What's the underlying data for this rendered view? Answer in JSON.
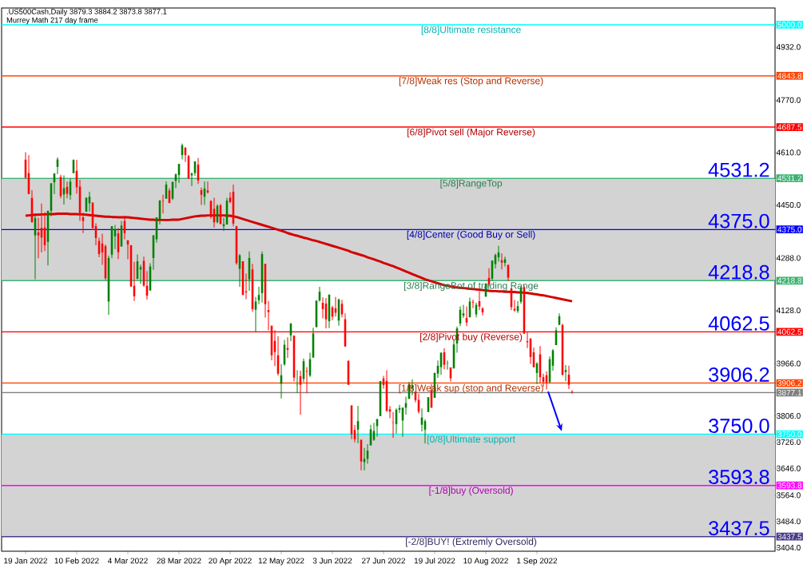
{
  "chart_data": {
    "type": "candlestick",
    "title": ".US500Cash,Daily  3879.3 3884.2 3873.8 3877.1",
    "subtitle": "Murrey Math 217 day frame",
    "categories": [
      "19 Jan 2022",
      null,
      null,
      null,
      null,
      null,
      null,
      null,
      null,
      null,
      null,
      null,
      null,
      null,
      null,
      null,
      "10 Feb 2022",
      null,
      null,
      null,
      null,
      null,
      null,
      null,
      null,
      null,
      null,
      null,
      null,
      null,
      null,
      null,
      "4 Mar 2022",
      null,
      null,
      null,
      null,
      null,
      null,
      null,
      null,
      null,
      null,
      null,
      null,
      null,
      null,
      null,
      "28 Mar 2022",
      null,
      null,
      null,
      null,
      null,
      null,
      null,
      null,
      null,
      null,
      null,
      null,
      null,
      null,
      null,
      "20 Apr 2022",
      null,
      null,
      null,
      null,
      null,
      null,
      null,
      null,
      null,
      null,
      null,
      null,
      null,
      null,
      null,
      "12 May 2022",
      null,
      null,
      null,
      null,
      null,
      null,
      null,
      null,
      null,
      null,
      null,
      null,
      null,
      null,
      null,
      "3 Jun 2022",
      null,
      null,
      null,
      null,
      null,
      null,
      null,
      null,
      null,
      null,
      null,
      null,
      null,
      null,
      null,
      "27 Jun 2022",
      null,
      null,
      null,
      null,
      null,
      null,
      null,
      null,
      null,
      null,
      null,
      null,
      null,
      null,
      null,
      "19 Jul 2022",
      null,
      null,
      null,
      null,
      null,
      null,
      null,
      null,
      null,
      null,
      null,
      null,
      null,
      null,
      null,
      "10 Aug 2022",
      null,
      null,
      null,
      null,
      null,
      null,
      null,
      null,
      null,
      null,
      null,
      null,
      null,
      null,
      null,
      "1 Sep 2022",
      null,
      null,
      null,
      null,
      null,
      null,
      null,
      null,
      null,
      null,
      null
    ],
    "ohlc": [
      [
        4588,
        4611,
        4530,
        4533
      ],
      [
        4547,
        4602,
        4483,
        4483
      ],
      [
        4471,
        4495,
        4395,
        4398
      ],
      [
        4357,
        4417,
        4223,
        4410
      ],
      [
        4366,
        4411,
        4287,
        4357
      ],
      [
        4380,
        4454,
        4305,
        4350
      ],
      [
        4381,
        4428,
        4309,
        4327
      ],
      [
        4337,
        4432,
        4265,
        4432
      ],
      [
        4432,
        4516,
        4415,
        4516
      ],
      [
        4519,
        4546,
        4483,
        4546
      ],
      [
        4566,
        4595,
        4544,
        4589
      ],
      [
        4535,
        4542,
        4470,
        4477
      ],
      [
        4482,
        4540,
        4451,
        4501
      ],
      [
        4505,
        4521,
        4470,
        4484
      ],
      [
        4480,
        4531,
        4466,
        4521
      ],
      [
        4547,
        4589,
        4547,
        4587
      ],
      [
        4554,
        4588,
        4484,
        4504
      ],
      [
        4506,
        4527,
        4401,
        4419
      ],
      [
        4412,
        4426,
        4364,
        4401
      ],
      [
        4429,
        4472,
        4429,
        4472
      ],
      [
        4455,
        4490,
        4430,
        4475
      ],
      [
        4457,
        4457,
        4373,
        4380
      ],
      [
        4385,
        4394,
        4327,
        4349
      ],
      [
        4340,
        4350,
        4290,
        4300
      ],
      [
        4332,
        4362,
        4267,
        4305
      ],
      [
        4324,
        4329,
        4221,
        4226
      ],
      [
        4155,
        4295,
        4114,
        4288
      ],
      [
        4298,
        4385,
        4287,
        4385
      ],
      [
        4354,
        4389,
        4315,
        4374
      ],
      [
        4363,
        4379,
        4285,
        4306
      ],
      [
        4323,
        4401,
        4323,
        4387
      ],
      [
        4401,
        4417,
        4345,
        4364
      ],
      [
        4342,
        4342,
        4284,
        4329
      ],
      [
        4327,
        4327,
        4200,
        4201
      ],
      [
        4203,
        4276,
        4157,
        4171
      ],
      [
        4224,
        4299,
        4224,
        4278
      ],
      [
        4253,
        4268,
        4209,
        4260
      ],
      [
        4279,
        4292,
        4200,
        4204
      ],
      [
        4203,
        4248,
        4161,
        4173
      ],
      [
        4189,
        4272,
        4188,
        4262
      ],
      [
        4288,
        4358,
        4252,
        4357
      ],
      [
        4345,
        4412,
        4335,
        4412
      ],
      [
        4407,
        4465,
        4390,
        4463
      ],
      [
        4462,
        4481,
        4424,
        4461
      ],
      [
        4469,
        4522,
        4469,
        4512
      ],
      [
        4494,
        4501,
        4455,
        4456
      ],
      [
        4469,
        4521,
        4465,
        4520
      ],
      [
        4523,
        4546,
        4501,
        4543
      ],
      [
        4541,
        4575,
        4517,
        4575
      ],
      [
        4602,
        4637,
        4589,
        4632
      ],
      [
        4624,
        4627,
        4581,
        4602
      ],
      [
        4599,
        4603,
        4530,
        4530
      ],
      [
        4540,
        4549,
        4507,
        4546
      ],
      [
        4547,
        4583,
        4539,
        4583
      ],
      [
        4573,
        4593,
        4514,
        4525
      ],
      [
        4495,
        4503,
        4450,
        4481
      ],
      [
        4475,
        4521,
        4450,
        4500
      ],
      [
        4494,
        4521,
        4485,
        4488
      ],
      [
        4462,
        4464,
        4408,
        4413
      ],
      [
        4438,
        4472,
        4381,
        4397
      ],
      [
        4397,
        4452,
        4394,
        4447
      ],
      [
        4449,
        4453,
        4390,
        4392
      ],
      [
        4385,
        4411,
        4371,
        4391
      ],
      [
        4390,
        4471,
        4390,
        4463
      ],
      [
        4472,
        4489,
        4455,
        4459
      ],
      [
        4490,
        4512,
        4385,
        4393
      ],
      [
        4385,
        4386,
        4267,
        4272
      ],
      [
        4255,
        4300,
        4200,
        4296
      ],
      [
        4278,
        4278,
        4175,
        4175
      ],
      [
        4186,
        4240,
        4162,
        4183
      ],
      [
        4223,
        4308,
        4188,
        4288
      ],
      [
        4253,
        4270,
        4124,
        4132
      ],
      [
        4130,
        4169,
        4062,
        4155
      ],
      [
        4159,
        4200,
        4147,
        4175
      ],
      [
        4181,
        4308,
        4152,
        4300
      ],
      [
        4270,
        4270,
        4106,
        4147
      ],
      [
        4129,
        4157,
        4067,
        4123
      ],
      [
        4081,
        4082,
        3976,
        3991
      ],
      [
        4035,
        4068,
        3958,
        4001
      ],
      [
        3991,
        4049,
        3929,
        3935
      ],
      [
        3904,
        3964,
        3859,
        3930
      ],
      [
        3963,
        4038,
        3959,
        4023
      ],
      [
        4013,
        4046,
        3983,
        4008
      ],
      [
        4052,
        4089,
        4034,
        4088
      ],
      [
        4051,
        4051,
        3911,
        3923
      ],
      [
        3900,
        3946,
        3876,
        3901
      ],
      [
        3927,
        3944,
        3810,
        3901
      ],
      [
        3919,
        3981,
        3909,
        3973
      ],
      [
        3943,
        3955,
        3875,
        3941
      ],
      [
        3929,
        3999,
        3925,
        3979
      ],
      [
        3984,
        4075,
        3984,
        4058
      ],
      [
        4077,
        4158,
        4077,
        4158
      ],
      [
        4158,
        4200,
        4155,
        4185
      ],
      [
        4151,
        4168,
        4104,
        4132
      ],
      [
        4149,
        4166,
        4073,
        4101
      ],
      [
        4095,
        4177,
        4074,
        4176
      ],
      [
        4137,
        4142,
        4098,
        4109
      ],
      [
        4134,
        4169,
        4109,
        4121
      ],
      [
        4097,
        4164,
        4081,
        4161
      ],
      [
        4148,
        4160,
        4107,
        4116
      ],
      [
        4101,
        4119,
        4017,
        4018
      ],
      [
        3974,
        3975,
        3901,
        3901
      ],
      [
        3838,
        3838,
        3735,
        3750
      ],
      [
        3763,
        3778,
        3725,
        3735
      ],
      [
        3764,
        3837,
        3723,
        3790
      ],
      [
        3733,
        3733,
        3640,
        3667
      ],
      [
        3665,
        3708,
        3640,
        3675
      ],
      [
        3675,
        3720,
        3660,
        3700
      ],
      [
        3716,
        3779,
        3716,
        3765
      ],
      [
        3733,
        3785,
        3730,
        3760
      ],
      [
        3775,
        3797,
        3743,
        3796
      ],
      [
        3805,
        3913,
        3805,
        3912
      ],
      [
        3920,
        3928,
        3889,
        3900
      ],
      [
        3913,
        3945,
        3820,
        3821
      ],
      [
        3826,
        3836,
        3799,
        3819
      ],
      [
        3786,
        3818,
        3739,
        3785
      ],
      [
        3781,
        3829,
        3752,
        3825
      ],
      [
        3825,
        3840,
        3815,
        3830
      ],
      [
        3792,
        3832,
        3742,
        3831
      ],
      [
        3831,
        3865,
        3810,
        3845
      ],
      [
        3858,
        3910,
        3858,
        3903
      ],
      [
        3889,
        3918,
        3869,
        3899
      ],
      [
        3880,
        3880,
        3847,
        3854
      ],
      [
        3855,
        3874,
        3813,
        3819
      ],
      [
        3779,
        3829,
        3759,
        3801
      ],
      [
        3764,
        3796,
        3722,
        3790
      ],
      [
        3818,
        3863,
        3817,
        3863
      ],
      [
        3884,
        3903,
        3831,
        3831
      ],
      [
        3861,
        3938,
        3861,
        3937
      ],
      [
        3935,
        3975,
        3922,
        3959
      ],
      [
        3955,
        3999,
        3932,
        3999
      ],
      [
        4000,
        4012,
        3948,
        3962
      ],
      [
        3966,
        3975,
        3947,
        3967
      ],
      [
        3954,
        3954,
        3911,
        3921
      ],
      [
        3951,
        4039,
        3951,
        4024
      ],
      [
        4027,
        4079,
        3999,
        4073
      ],
      [
        4088,
        4140,
        4080,
        4130
      ],
      [
        4112,
        4145,
        4105,
        4119
      ],
      [
        4105,
        4140,
        4080,
        4091
      ],
      [
        4107,
        4167,
        4107,
        4155
      ],
      [
        4154,
        4161,
        4135,
        4152
      ],
      [
        4116,
        4151,
        4107,
        4145
      ],
      [
        4156,
        4186,
        4129,
        4140
      ],
      [
        4134,
        4138,
        4113,
        4122
      ],
      [
        4170,
        4211,
        4170,
        4210
      ],
      [
        4227,
        4257,
        4201,
        4207
      ],
      [
        4225,
        4280,
        4219,
        4280
      ],
      [
        4269,
        4301,
        4256,
        4297
      ],
      [
        4290,
        4325,
        4277,
        4305
      ],
      [
        4281,
        4302,
        4253,
        4274
      ],
      [
        4273,
        4292,
        4262,
        4284
      ],
      [
        4267,
        4267,
        4218,
        4228
      ],
      [
        4195,
        4195,
        4129,
        4138
      ],
      [
        4133,
        4160,
        4124,
        4128
      ],
      [
        4126,
        4157,
        4120,
        4141
      ],
      [
        4154,
        4200,
        4148,
        4199
      ],
      [
        4199,
        4204,
        4057,
        4057
      ],
      [
        4034,
        4062,
        4013,
        4031
      ],
      [
        4041,
        4044,
        3965,
        3986
      ],
      [
        4000,
        4015,
        3954,
        3955
      ],
      [
        3937,
        3970,
        3903,
        3966
      ],
      [
        3994,
        4019,
        3907,
        3924
      ],
      [
        3924,
        3935,
        3895,
        3910
      ],
      [
        3930,
        3942,
        3887,
        3908
      ],
      [
        3909,
        3987,
        3906,
        3979
      ],
      [
        3959,
        4010,
        3944,
        4006
      ],
      [
        4022,
        4076,
        4022,
        4067
      ],
      [
        4084,
        4119,
        4083,
        4110
      ],
      [
        4083,
        4088,
        3928,
        3932
      ],
      [
        3940,
        3961,
        3912,
        3946
      ],
      [
        3932,
        3959,
        3888,
        3901
      ],
      [
        3879.3,
        3884.2,
        3873.8,
        3877.1
      ]
    ],
    "colors": [
      "#ff0000",
      "#ff0000",
      "#ff0000",
      "#008000",
      "#ff0000",
      "#ff0000",
      "#ff0000",
      "#008000",
      "#008000",
      "#008000",
      "#008000",
      "#ff0000",
      "#008000",
      "#ff0000",
      "#008000",
      "#008000",
      "#ff0000",
      "#ff0000",
      "#ff0000",
      "#008000",
      "#008000",
      "#ff0000",
      "#ff0000",
      "#ff0000",
      "#ff0000",
      "#ff0000",
      "#008000",
      "#008000",
      "#008000",
      "#ff0000",
      "#008000",
      "#ff0000",
      "#ff0000",
      "#ff0000",
      "#ff0000",
      "#008000",
      "#008000",
      "#ff0000",
      "#ff0000",
      "#008000",
      "#008000",
      "#008000",
      "#008000",
      "#ff0000",
      "#008000",
      "#ff0000",
      "#008000",
      "#008000",
      "#008000",
      "#008000",
      "#ff0000",
      "#ff0000",
      "#008000",
      "#008000",
      "#ff0000",
      "#ff0000",
      "#008000",
      "#ff0000",
      "#ff0000",
      "#ff0000",
      "#008000",
      "#ff0000",
      "#008000",
      "#008000",
      "#ff0000",
      "#ff0000",
      "#ff0000",
      "#008000",
      "#ff0000",
      "#ff0000",
      "#008000",
      "#ff0000",
      "#008000",
      "#008000",
      "#008000",
      "#ff0000",
      "#ff0000",
      "#ff0000",
      "#ff0000",
      "#ff0000",
      "#008000",
      "#008000",
      "#ff0000",
      "#008000",
      "#ff0000",
      "#008000",
      "#ff0000",
      "#008000",
      "#ff0000",
      "#008000",
      "#008000",
      "#008000",
      "#008000",
      "#ff0000",
      "#ff0000",
      "#008000",
      "#ff0000",
      "#ff0000",
      "#008000",
      "#ff0000",
      "#ff0000",
      "#ff0000",
      "#ff0000",
      "#ff0000",
      "#008000",
      "#ff0000",
      "#008000",
      "#008000",
      "#008000",
      "#008000",
      "#008000",
      "#008000",
      "#ff0000",
      "#ff0000",
      "#ff0000",
      "#ff0000",
      "#008000",
      "#008000",
      "#008000",
      "#008000",
      "#008000",
      "#008000",
      "#ff0000",
      "#ff0000",
      "#008000",
      "#008000",
      "#008000",
      "#ff0000",
      "#008000",
      "#008000",
      "#008000",
      "#ff0000",
      "#008000",
      "#ff0000",
      "#008000",
      "#008000",
      "#008000",
      "#008000",
      "#ff0000",
      "#008000",
      "#ff0000",
      "#008000",
      "#ff0000",
      "#ff0000",
      "#008000",
      "#ff0000",
      "#008000",
      "#008000",
      "#008000",
      "#ff0000",
      "#008000",
      "#ff0000",
      "#ff0000",
      "#ff0000",
      "#008000",
      "#008000",
      "#ff0000",
      "#ff0000",
      "#ff0000",
      "#ff0000",
      "#008000",
      "#ff0000",
      "#ff0000",
      "#ff0000",
      "#008000",
      "#008000",
      "#008000",
      "#008000",
      "#ff0000",
      "#008000",
      "#ff0000",
      "#ff0000"
    ],
    "series": [
      {
        "type": "line",
        "color": "#d40000",
        "values": [
          4417,
          4418,
          4419,
          4420,
          4420,
          4421,
          4421,
          4422,
          4422,
          4422,
          4423,
          4423,
          4423,
          4423,
          4422,
          4422,
          4422,
          4421,
          4421,
          4420,
          4419,
          4418,
          4417,
          4416,
          4415,
          4414,
          4414,
          4413,
          4413,
          4412,
          4412,
          4412,
          4412,
          4411,
          4410,
          4409,
          4408,
          4407,
          4406,
          4405,
          4405,
          4404,
          4404,
          4404,
          4404,
          4404,
          4405,
          4405,
          4405,
          4407,
          4409,
          4411,
          4413,
          4415,
          4416,
          4417,
          4417,
          4418,
          4418,
          4418,
          4418,
          4418,
          4418,
          4417,
          4417,
          4415,
          4413,
          4410,
          4407,
          4404,
          4401,
          4398,
          4395,
          4392,
          4389,
          4386,
          4383,
          4380,
          4377,
          4374,
          4371,
          4368,
          4364,
          4361,
          4358,
          4356,
          4353,
          4350,
          4348,
          4345,
          4342,
          4340,
          4337,
          4334,
          4331,
          4328,
          4325,
          4322,
          4319,
          4316,
          4313,
          4310,
          4306,
          4303,
          4300,
          4297,
          4294,
          4290,
          4287,
          4284,
          4280,
          4277,
          4273,
          4270,
          4266,
          4263,
          4259,
          4255,
          4251,
          4247,
          4243,
          4239,
          4235,
          4231,
          4227,
          4223,
          4220,
          4217,
          4214,
          4211,
          4208,
          4205,
          4203,
          4201,
          4199,
          4198,
          4197,
          4196,
          4195,
          4194,
          4193,
          4192,
          4191,
          4190,
          4189,
          4188,
          4187,
          4187,
          4186,
          4186,
          4185,
          4185,
          4184,
          4184,
          4183,
          4183,
          4182,
          4181,
          4180,
          4178,
          4177,
          4175,
          4174,
          4172,
          4170,
          4168,
          4166,
          4164,
          4162,
          4160,
          4158,
          4156
        ]
      }
    ],
    "ylim": [
      3393,
      5051
    ],
    "yticks": [
      {
        "value": 3404,
        "label": "3404.0"
      },
      {
        "value": 3437.5,
        "label": "3437.5"
      },
      {
        "value": 3484,
        "label": "3484.0"
      },
      {
        "value": 3564,
        "label": "3564.0"
      },
      {
        "value": 3593.8,
        "label": "3593.8"
      },
      {
        "value": 3646,
        "label": "3646.0"
      },
      {
        "value": 3726,
        "label": "3726.0"
      },
      {
        "value": 3750,
        "label": "3750.0"
      },
      {
        "value": 3806,
        "label": "3806.0"
      },
      {
        "value": 3877.1,
        "label": "3877.1"
      },
      {
        "value": 3906.2,
        "label": "3906.2"
      },
      {
        "value": 3966,
        "label": "3966.0"
      },
      {
        "value": 4062.5,
        "label": "4062.5"
      },
      {
        "value": 4128,
        "label": "4128.0"
      },
      {
        "value": 4218.8,
        "label": "4218.8"
      },
      {
        "value": 4288,
        "label": "4288.0"
      },
      {
        "value": 4375,
        "label": "4375.0"
      },
      {
        "value": 4450,
        "label": "4450.0"
      },
      {
        "value": 4531.2,
        "label": "4531.2"
      },
      {
        "value": 4610,
        "label": "4610.0"
      },
      {
        "value": 4687.5,
        "label": "4687.5"
      },
      {
        "value": 4770,
        "label": "4770.0"
      },
      {
        "value": 4843.8,
        "label": "4843.8"
      },
      {
        "value": 4932,
        "label": "4932.0"
      },
      {
        "value": 5000,
        "label": "5000.0"
      }
    ],
    "ref_lines": [
      {
        "axis": "y",
        "value": 5000,
        "label": "[8/8]Ultimate resistance",
        "color": "#00ffff"
      },
      {
        "axis": "y",
        "value": 4843.8,
        "label": "[7/8]Weak res (Stop and Reverse)",
        "color": "#ff4500"
      },
      {
        "axis": "y",
        "value": 4687.5,
        "label": "[6/8]Pivot sell (Major Reverse)",
        "color": "#ff0000"
      },
      {
        "axis": "y",
        "value": 4531.2,
        "label": "[5/8]RangeTop",
        "color": "#3cb371"
      },
      {
        "axis": "y",
        "value": 4375,
        "label": "[4/8]Center (Good Buy or Sell)",
        "color": "#0000ff"
      },
      {
        "axis": "y",
        "value": 4218.8,
        "label": "[3/8]RangeBot of trading Range",
        "color": "#3cb371"
      },
      {
        "axis": "y",
        "value": 4062.5,
        "label": "[2/8]Pivot buy (Reverse)",
        "color": "#ff0000"
      },
      {
        "axis": "y",
        "value": 3906.2,
        "label": "[1/8]Weak sup (stop and Reverse)",
        "color": "#ff4500"
      },
      {
        "axis": "y",
        "value": 3750,
        "label": "[0/8]Ultimate support",
        "color": "#00ffff"
      },
      {
        "axis": "y",
        "value": 3593.8,
        "label": "[-1/8]buy (Oversold)",
        "color": "#ff00ff"
      },
      {
        "axis": "y",
        "value": 3437.5,
        "label": "[-2/8]BUY! (Extremly Oversold)",
        "color": "#483d8b"
      },
      {
        "axis": "y",
        "value": 3877.1,
        "color": "#808080"
      }
    ],
    "bands": [
      {
        "axis": "y",
        "from": 4218.8,
        "to": 4531.2,
        "color": "#d3d3d3"
      },
      {
        "axis": "y",
        "from": 3437.5,
        "to": 3750,
        "color": "#d3d3d3"
      }
    ],
    "annotations": [
      {
        "text": "4531.2",
        "y": 4531.2
      },
      {
        "text": "4375.0",
        "y": 4375
      },
      {
        "text": "4218.8",
        "y": 4218.8
      },
      {
        "text": "4062.5",
        "y": 4062.5
      },
      {
        "text": "3906.2",
        "y": 3906.2
      },
      {
        "text": "3750.0",
        "y": 3750
      },
      {
        "text": "3593.8",
        "y": 3593.8
      },
      {
        "text": "3437.5",
        "y": 3437.5
      }
    ]
  }
}
